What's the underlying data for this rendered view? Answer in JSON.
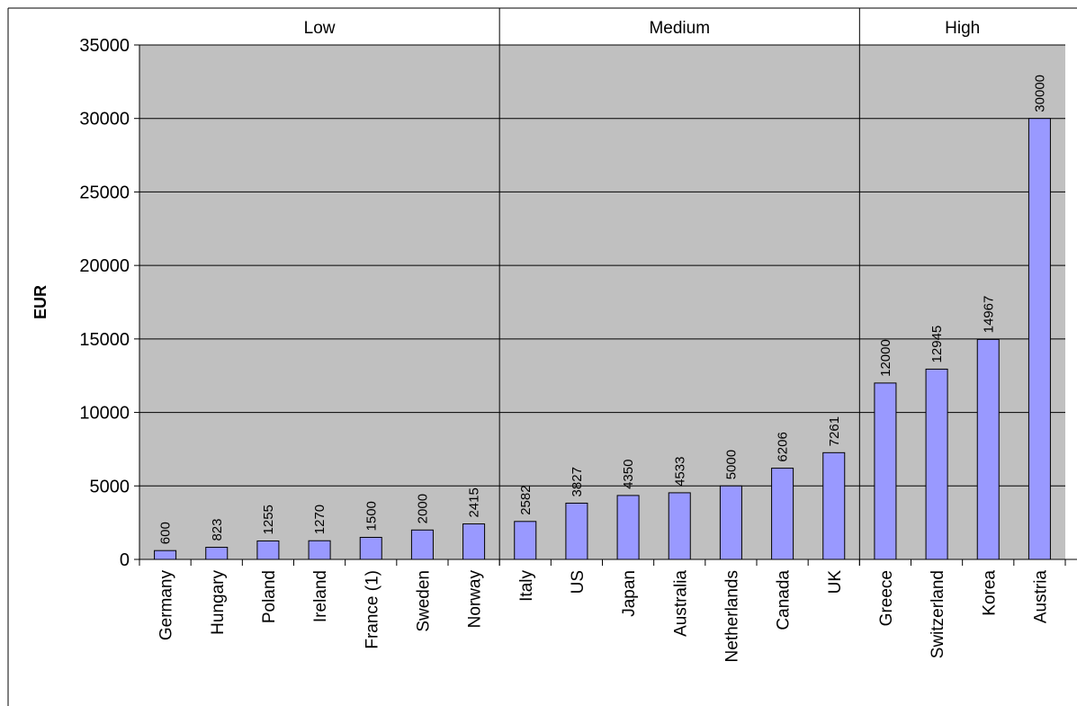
{
  "chart_data": {
    "type": "bar",
    "title": "",
    "xlabel": "",
    "ylabel": "EUR",
    "ylim": [
      0,
      35000
    ],
    "yticks": [
      0,
      5000,
      10000,
      15000,
      20000,
      25000,
      30000,
      35000
    ],
    "grid": true,
    "legend": "none",
    "groups": [
      {
        "label": "Low",
        "count": 7
      },
      {
        "label": "Medium",
        "count": 7
      },
      {
        "label": "High",
        "count": 4
      }
    ],
    "categories": [
      "Germany",
      "Hungary",
      "Poland",
      "Ireland",
      "France (1)",
      "Sweden",
      "Norway",
      "Italy",
      "US",
      "Japan",
      "Australia",
      "Netherlands",
      "Canada",
      "UK",
      "Greece",
      "Switzerland",
      "Korea",
      "Austria"
    ],
    "values": [
      600,
      823,
      1255,
      1270,
      1500,
      2000,
      2415,
      2582,
      3827,
      4350,
      4533,
      5000,
      6206,
      7261,
      12000,
      12945,
      14967,
      30000
    ],
    "colors": {
      "plot_bg": "#c0c0c0",
      "bar": "#9999ff",
      "bar_stroke": "#000000",
      "gridline": "#000000"
    }
  }
}
